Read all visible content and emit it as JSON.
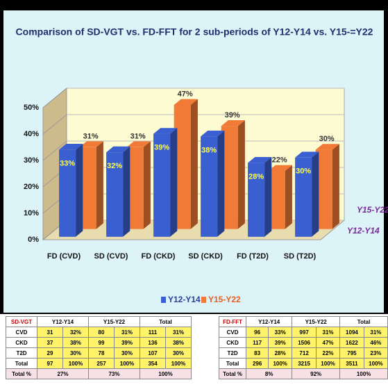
{
  "chart_data": {
    "type": "bar3d",
    "title": "Comparison of SD-VGT vs. FD-FFT for 2 sub-periods of Y12-Y14 vs. Y15-=Y22",
    "categories": [
      "FD (CVD)",
      "SD (CVD)",
      "FD (CKD)",
      "SD (CKD)",
      "FD (T2D)",
      "SD (T2D)"
    ],
    "series": [
      {
        "name": "Y12-Y14",
        "color": "#3a5fd0",
        "values": [
          33,
          32,
          39,
          38,
          28,
          30
        ],
        "value_labels": [
          "33%",
          "32%",
          "39%",
          "38%",
          "28%",
          "30%"
        ]
      },
      {
        "name": "Y15-Y22",
        "color": "#f07a36",
        "values": [
          31,
          31,
          47,
          39,
          22,
          30
        ],
        "value_labels": [
          "31%",
          "31%",
          "47%",
          "39%",
          "22%",
          "30%"
        ]
      }
    ],
    "ylim": [
      0,
      50
    ],
    "yticks": [
      {
        "value": 0,
        "label": "0%"
      },
      {
        "value": 10,
        "label": "10%"
      },
      {
        "value": 20,
        "label": "20%"
      },
      {
        "value": 30,
        "label": "30%"
      },
      {
        "value": 40,
        "label": "40%"
      },
      {
        "value": 50,
        "label": "50%"
      }
    ],
    "grid": true,
    "legend": "bottom"
  },
  "tables": [
    {
      "header": [
        "SD-VGT",
        "Y12-Y14",
        "Y15-Y22",
        "Total"
      ],
      "rows": [
        [
          "CVD",
          "31",
          "32%",
          "80",
          "31%",
          "111",
          "31%"
        ],
        [
          "CKD",
          "37",
          "38%",
          "99",
          "39%",
          "136",
          "38%"
        ],
        [
          "T2D",
          "29",
          "30%",
          "78",
          "30%",
          "107",
          "30%"
        ],
        [
          "Total",
          "97",
          "100%",
          "257",
          "100%",
          "354",
          "100%"
        ]
      ],
      "footer": [
        "Total %",
        "27%",
        "73%",
        "100%"
      ]
    },
    {
      "header": [
        "FD-FFT",
        "Y12-Y14",
        "Y15-Y22",
        "Total"
      ],
      "rows": [
        [
          "CVD",
          "96",
          "33%",
          "997",
          "31%",
          "1094",
          "31%"
        ],
        [
          "CKD",
          "117",
          "39%",
          "1506",
          "47%",
          "1622",
          "46%"
        ],
        [
          "T2D",
          "83",
          "28%",
          "712",
          "22%",
          "795",
          "23%"
        ],
        [
          "Total",
          "296",
          "100%",
          "3215",
          "100%",
          "3511",
          "100%"
        ]
      ],
      "footer": [
        "Total %",
        "8%",
        "92%",
        "100%"
      ]
    }
  ]
}
